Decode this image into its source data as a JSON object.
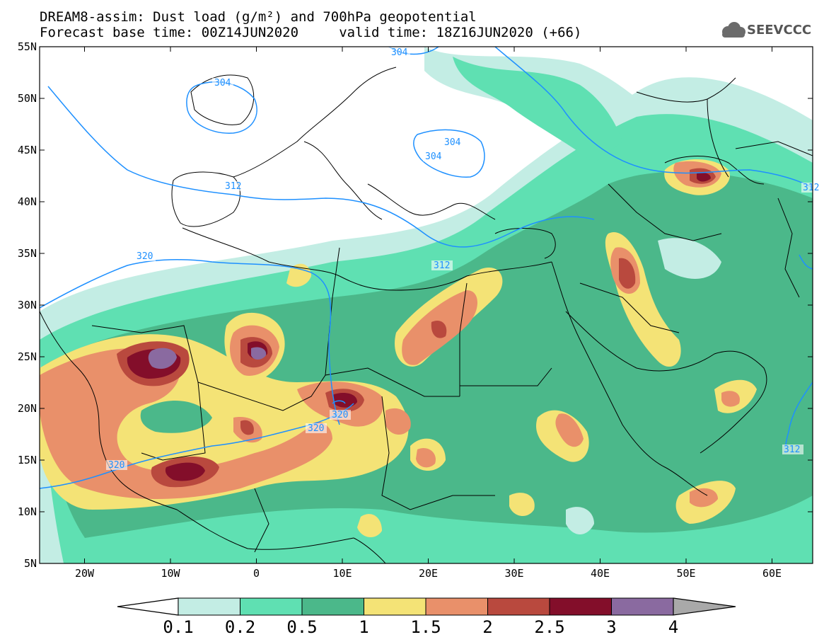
{
  "title_line1": "DREAM8-assim: Dust load (g/m²) and 700hPa geopotential",
  "title_line2": "Forecast base time: 00Z14JUN2020     valid time: 18Z16JUN2020 (+66)",
  "logo_text": "SEEVCCC",
  "lat_labels": [
    "55N",
    "50N",
    "45N",
    "40N",
    "35N",
    "30N",
    "25N",
    "20N",
    "15N",
    "10N",
    "5N"
  ],
  "lon_labels": [
    "20W",
    "10W",
    "0",
    "10E",
    "20E",
    "30E",
    "40E",
    "50E",
    "60E"
  ],
  "contour_labels": [
    "304",
    "304",
    "304",
    "304",
    "312",
    "312",
    "312",
    "312",
    "320",
    "320",
    "320",
    "320"
  ],
  "colorbar": {
    "labels": [
      "0.1",
      "0.2",
      "0.5",
      "1",
      "1.5",
      "2",
      "2.5",
      "3",
      "4"
    ],
    "colors": [
      "#c3ede4",
      "#5fe0b2",
      "#4bb88a",
      "#f4e376",
      "#e9906a",
      "#b9493e",
      "#830e2a",
      "#8a6aa0"
    ],
    "under_color": "#ffffff",
    "over_color": "#a9a9a9"
  },
  "colors": {
    "coast": "#000000",
    "contour": "#1e90ff"
  }
}
